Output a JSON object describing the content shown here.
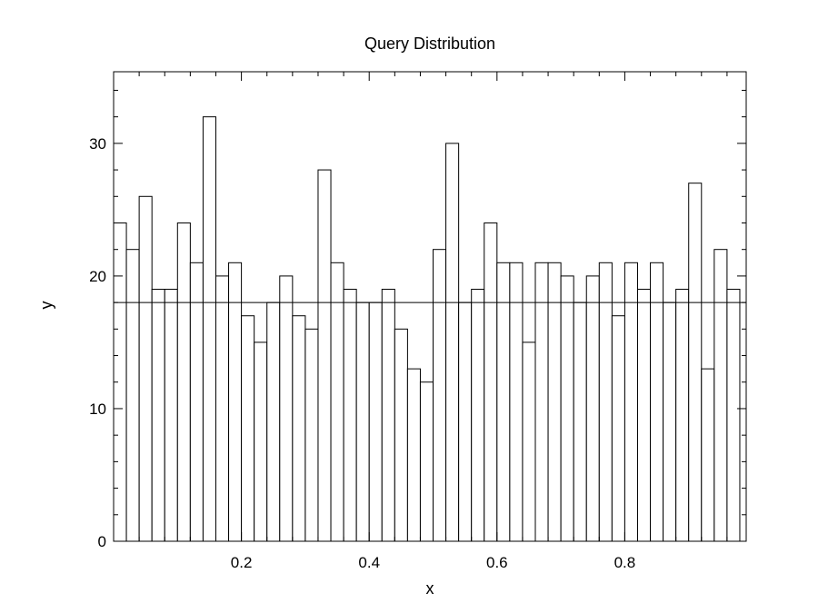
{
  "chart_data": {
    "type": "bar",
    "title": "Query Distribution",
    "xlabel": "x",
    "ylabel": "y",
    "xlim": [
      0.0,
      0.99
    ],
    "ylim": [
      0,
      35.4
    ],
    "bin_width": 0.02,
    "bin_start": 0.0,
    "values": [
      24,
      22,
      26,
      19,
      19,
      24,
      21,
      32,
      20,
      21,
      17,
      15,
      18,
      20,
      17,
      16,
      28,
      21,
      19,
      18,
      18,
      19,
      16,
      13,
      12,
      22,
      30,
      18,
      19,
      24,
      21,
      21,
      15,
      21,
      21,
      20,
      18,
      20,
      21,
      17,
      21,
      19,
      21,
      18,
      19,
      27,
      13,
      22,
      19
    ],
    "reference_line": 18,
    "x_ticks": [
      0.2,
      0.4,
      0.6,
      0.8
    ],
    "x_tick_labels": [
      "0.2",
      "0.4",
      "0.6",
      "0.8"
    ],
    "y_ticks": [
      0,
      10,
      20,
      30
    ],
    "y_tick_labels": [
      "0",
      "10",
      "20",
      "30"
    ],
    "x_minor_step": 0.04,
    "y_minor_step": 2,
    "grid": false,
    "legend": "none"
  }
}
